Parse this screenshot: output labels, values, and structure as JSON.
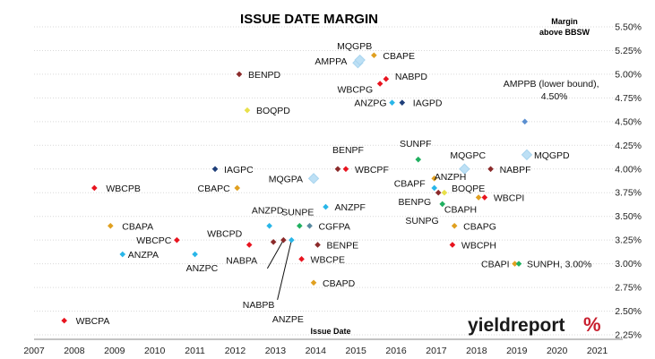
{
  "chart_data": {
    "type": "scatter",
    "title": "ISSUE DATE MARGIN",
    "xlabel": "Issue Date",
    "ylabel_lines": [
      "Margin",
      "above BBSW"
    ],
    "xlim": [
      2007,
      2021.5
    ],
    "ylim": [
      2.25,
      5.5
    ],
    "x_ticks": [
      "2007",
      "2008",
      "2009",
      "2010",
      "2011",
      "2012",
      "2013",
      "2014",
      "2015",
      "2016",
      "2017",
      "2018",
      "2019",
      "2020",
      "2021"
    ],
    "y_ticks": [
      "2.25%",
      "2.50%",
      "2.75%",
      "3.00%",
      "3.25%",
      "3.50%",
      "3.75%",
      "4.00%",
      "4.25%",
      "4.50%",
      "4.75%",
      "5.00%",
      "5.25%",
      "5.50%"
    ],
    "grid": "horizontal",
    "points": [
      {
        "label": "WBCPA",
        "x": 2007.75,
        "y": 2.4,
        "color": "#e8141f"
      },
      {
        "label": "WBCPB",
        "x": 2008.5,
        "y": 3.8,
        "color": "#e8141f"
      },
      {
        "label": "CBAPA",
        "x": 2008.9,
        "y": 3.4,
        "color": "#e0a020"
      },
      {
        "label": "ANZPA",
        "x": 2009.2,
        "y": 3.1,
        "color": "#29b6e8"
      },
      {
        "label": "WBCPC",
        "x": 2010.55,
        "y": 3.25,
        "color": "#e8141f"
      },
      {
        "label": "ANZPC",
        "x": 2011.0,
        "y": 3.1,
        "color": "#29b6e8"
      },
      {
        "label": "IAGPC",
        "x": 2011.5,
        "y": 4.0,
        "color": "#1f3f7a"
      },
      {
        "label": "CBAPC",
        "x": 2012.05,
        "y": 3.8,
        "color": "#e0a020"
      },
      {
        "label": "BENPD",
        "x": 2012.1,
        "y": 5.0,
        "color": "#8b2a2a"
      },
      {
        "label": "BOQPD",
        "x": 2012.3,
        "y": 4.62,
        "color": "#e8e04a"
      },
      {
        "label": "WBCPD",
        "x": 2012.35,
        "y": 3.2,
        "color": "#e8141f"
      },
      {
        "label": "NABPA",
        "x": 2012.95,
        "y": 3.23,
        "color": "#8b2a2a"
      },
      {
        "label": "NABPB",
        "x": 2013.2,
        "y": 3.25,
        "color": "#8b2a2a"
      },
      {
        "label": "ANZPD",
        "x": 2012.85,
        "y": 3.4,
        "color": "#29b6e8"
      },
      {
        "label": "ANZPE",
        "x": 2013.4,
        "y": 3.25,
        "color": "#29b6e8"
      },
      {
        "label": "SUNPE",
        "x": 2013.6,
        "y": 3.4,
        "color": "#20b060"
      },
      {
        "label": "CGFPA",
        "x": 2013.85,
        "y": 3.4,
        "color": "#5a8aa0"
      },
      {
        "label": "CBAPD",
        "x": 2013.95,
        "y": 2.8,
        "color": "#e0a020"
      },
      {
        "label": "WBCPE",
        "x": 2013.65,
        "y": 3.05,
        "color": "#e8141f"
      },
      {
        "label": "BENPE",
        "x": 2014.05,
        "y": 3.2,
        "color": "#8b2a2a"
      },
      {
        "label": "MQGPA",
        "x": 2013.95,
        "y": 3.9,
        "color": "#bde0f5"
      },
      {
        "label": "ANZPF",
        "x": 2014.25,
        "y": 3.6,
        "color": "#29b6e8"
      },
      {
        "label": "BENPF",
        "x": 2014.55,
        "y": 4.0,
        "color": "#8b2a2a"
      },
      {
        "label": "WBCPF",
        "x": 2014.75,
        "y": 4.0,
        "color": "#e8141f"
      },
      {
        "label": "AMPPA",
        "x": 2015.05,
        "y": 5.12,
        "color": "#bde0f5"
      },
      {
        "label": "MQGPB",
        "x": 2015.1,
        "y": 5.15,
        "color": "#bde0f5"
      },
      {
        "label": "CBAPE",
        "x": 2015.45,
        "y": 5.2,
        "color": "#e0a020"
      },
      {
        "label": "WBCPG",
        "x": 2015.6,
        "y": 4.9,
        "color": "#e8141f"
      },
      {
        "label": "NABPD",
        "x": 2015.75,
        "y": 4.95,
        "color": "#e8141f"
      },
      {
        "label": "ANZPG",
        "x": 2015.9,
        "y": 4.7,
        "color": "#29b6e8"
      },
      {
        "label": "IAGPD",
        "x": 2016.15,
        "y": 4.7,
        "color": "#1f3f7a"
      },
      {
        "label": "SUNPF",
        "x": 2016.55,
        "y": 4.1,
        "color": "#20b060"
      },
      {
        "label": "ANZPH",
        "x": 2016.95,
        "y": 3.8,
        "color": "#29b6e8"
      },
      {
        "label": "CBAPF",
        "x": 2016.95,
        "y": 3.9,
        "color": "#e0a020"
      },
      {
        "label": "BENPG",
        "x": 2017.05,
        "y": 3.75,
        "color": "#8b2a2a"
      },
      {
        "label": "BOQPE",
        "x": 2017.2,
        "y": 3.75,
        "color": "#e8e04a"
      },
      {
        "label": "SUNPG",
        "x": 2017.15,
        "y": 3.63,
        "color": "#20b060"
      },
      {
        "label": "CBAPG",
        "x": 2017.45,
        "y": 3.4,
        "color": "#e0a020"
      },
      {
        "label": "WBCPH",
        "x": 2017.4,
        "y": 3.2,
        "color": "#e8141f"
      },
      {
        "label": "MQGPC",
        "x": 2017.7,
        "y": 4.0,
        "color": "#bde0f5"
      },
      {
        "label": "CBAPH",
        "x": 2018.05,
        "y": 3.7,
        "color": "#e0a020"
      },
      {
        "label": "WBCPI",
        "x": 2018.2,
        "y": 3.7,
        "color": "#e8141f"
      },
      {
        "label": "NABPF",
        "x": 2018.35,
        "y": 4.0,
        "color": "#8b2a2a"
      },
      {
        "label": "CBAPI",
        "x": 2018.95,
        "y": 3.0,
        "color": "#e0a020"
      },
      {
        "label": "SUNPH, 3.00%",
        "x": 2019.05,
        "y": 3.0,
        "color": "#20b060"
      },
      {
        "label": "AMPPB (lower bound),",
        "label2": "4.50%",
        "x": 2019.2,
        "y": 4.5,
        "color": "#5b8fd0"
      },
      {
        "label": "MQGPD",
        "x": 2019.25,
        "y": 4.15,
        "color": "#bde0f5"
      }
    ],
    "legend": "none"
  },
  "brand": {
    "name": "yieldreport",
    "symbol": "%"
  }
}
